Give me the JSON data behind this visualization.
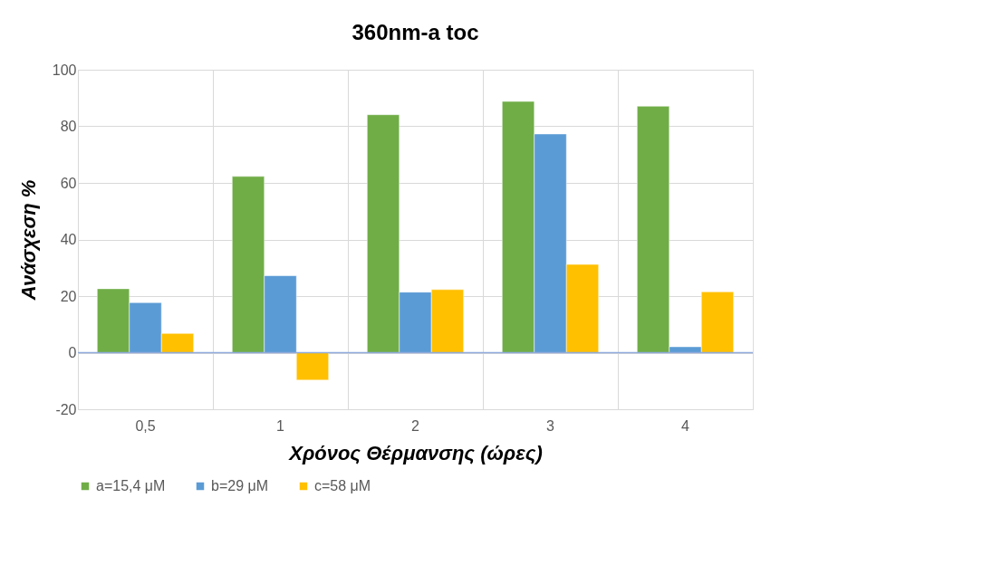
{
  "chart_data": {
    "type": "bar",
    "title": "360nm-a toc",
    "xlabel": "Χρόνος Θέρμανσης (ώρες)",
    "ylabel": "Ανάσχεση %",
    "categories": [
      "0,5",
      "1",
      "2",
      "3",
      "4"
    ],
    "series": [
      {
        "name": "a=15,4 μM",
        "color": "#70ad47",
        "values": [
          22.6,
          62.3,
          84.1,
          88.8,
          87.1
        ]
      },
      {
        "name": "b=29 μM",
        "color": "#5b9bd5",
        "values": [
          17.7,
          27.2,
          21.4,
          77.3,
          2.1
        ]
      },
      {
        "name": "c=58 μM",
        "color": "#ffc000",
        "values": [
          6.8,
          -9.7,
          22.3,
          31.2,
          21.5
        ]
      }
    ],
    "ylim": [
      -20,
      100
    ],
    "yticks": [
      -20,
      0,
      20,
      40,
      60,
      80,
      100
    ],
    "grid": true,
    "legend": "bottom",
    "ref_lines": [
      {
        "axis": "y",
        "value": 0,
        "label": null,
        "color": "#8faadc"
      }
    ]
  }
}
